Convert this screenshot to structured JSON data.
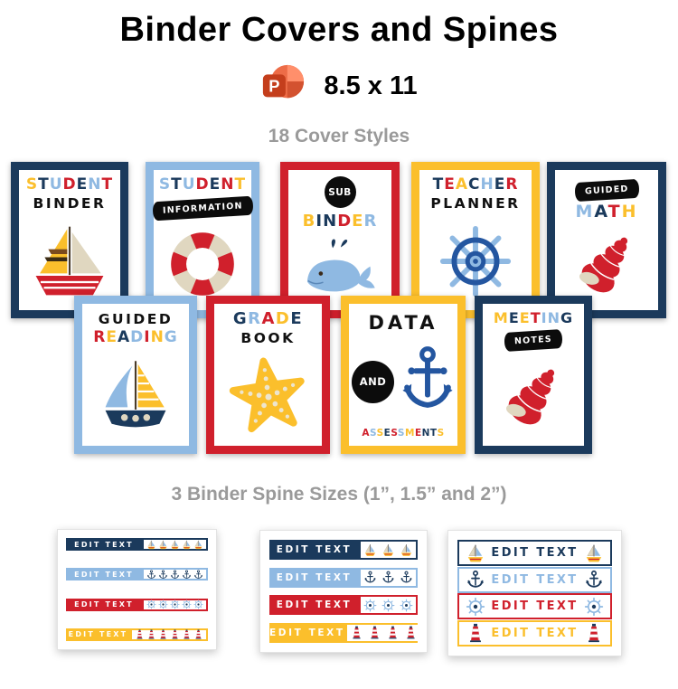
{
  "header": {
    "title": "Binder Covers and Spines",
    "pp_letter": "P",
    "size_label": "8.5 x 11",
    "covers_label": "18 Cover Styles",
    "spines_label": "3 Binder Spine Sizes (1”, 1.5” and 2”)"
  },
  "colors": {
    "navy": "#1B3A5C",
    "lightblue": "#8FB9E2",
    "red": "#D0202C",
    "yellow": "#FBBF2C",
    "black": "#0D0D0D",
    "cream": "#E0D7C0",
    "blue": "#2456A0",
    "gray_label": "#9A9A9A",
    "ppt_orange": "#ED6C47",
    "ppt_orange_light": "#FF8F6B",
    "ppt_orange_dark": "#D35230",
    "ppt_badge": "#C43E1C"
  },
  "covers": [
    {
      "id": "student-binder",
      "border": "navy",
      "graphic": "sailboat-a",
      "lines": [
        {
          "type": "letters",
          "text": "STUDENT",
          "colors": [
            "yellow",
            "navy",
            "lightblue",
            "red",
            "navy",
            "lightblue",
            "red"
          ]
        },
        {
          "type": "plain",
          "text": "BINDER"
        }
      ]
    },
    {
      "id": "student-information",
      "border": "lightblue",
      "graphic": "lifering",
      "lines": [
        {
          "type": "letters",
          "text": "STUDENT",
          "colors": [
            "lightblue",
            "navy",
            "lightblue",
            "red",
            "navy",
            "red",
            "yellow"
          ]
        },
        {
          "type": "banner",
          "text": "INFORMATION"
        }
      ]
    },
    {
      "id": "sub-binder",
      "border": "red",
      "graphic": "whale",
      "lines": [
        {
          "type": "badge",
          "text": "SUB"
        },
        {
          "type": "letters",
          "text": "BINDER",
          "colors": [
            "yellow",
            "navy",
            "navy",
            "red",
            "yellow",
            "lightblue"
          ]
        }
      ]
    },
    {
      "id": "teacher-planner",
      "border": "yellow",
      "graphic": "wheel-large",
      "lines": [
        {
          "type": "letters",
          "text": "TEACHER",
          "colors": [
            "navy",
            "red",
            "yellow",
            "navy",
            "lightblue",
            "navy",
            "red"
          ]
        },
        {
          "type": "plain",
          "text": "PLANNER"
        }
      ]
    },
    {
      "id": "guided-math",
      "border": "navy",
      "graphic": "shell",
      "lines": [
        {
          "type": "banner",
          "text": "GUIDED"
        },
        {
          "type": "letters",
          "text": "MATH",
          "colors": [
            "lightblue",
            "navy",
            "red",
            "yellow"
          ]
        }
      ]
    },
    {
      "id": "guided-reading",
      "border": "lightblue",
      "graphic": "sailboat-b",
      "lines": [
        {
          "type": "plain",
          "text": "GUIDED"
        },
        {
          "type": "letters",
          "text": "READING",
          "colors": [
            "red",
            "yellow",
            "navy",
            "lightblue",
            "red",
            "yellow",
            "lightblue"
          ]
        }
      ]
    },
    {
      "id": "grade-book",
      "border": "red",
      "graphic": "starfish",
      "lines": [
        {
          "type": "letters",
          "text": "GRADE",
          "colors": [
            "navy",
            "lightblue",
            "red",
            "yellow",
            "navy"
          ]
        },
        {
          "type": "plain",
          "text": "BOOK"
        }
      ]
    },
    {
      "id": "data-assessments",
      "border": "yellow",
      "graphic": "anchor-and",
      "badge": "AND",
      "lines": [
        {
          "type": "plain",
          "text": "DATA"
        }
      ],
      "bottom": {
        "type": "letters",
        "text": "ASSESSMENTS",
        "colors": [
          "red",
          "lightblue",
          "yellow",
          "navy",
          "red",
          "lightblue",
          "yellow",
          "red",
          "navy",
          "navy",
          "yellow"
        ]
      }
    },
    {
      "id": "meeting-notes",
      "border": "navy",
      "graphic": "shell",
      "lines": [
        {
          "type": "letters",
          "text": "MEETING",
          "colors": [
            "yellow",
            "navy",
            "yellow",
            "red",
            "lightblue",
            "lightblue",
            "navy"
          ]
        },
        {
          "type": "banner",
          "text": "NOTES"
        }
      ]
    }
  ],
  "spine_cards": [
    {
      "size": "1 inch",
      "spines": [
        {
          "style": "filled",
          "color": "navy",
          "label": "EDIT TEXT",
          "icon": "sailboat",
          "count": 5
        },
        {
          "style": "filled",
          "color": "lightblue",
          "label": "EDIT TEXT",
          "icon": "anchor",
          "count": 5
        },
        {
          "style": "filled",
          "color": "red",
          "label": "EDIT TEXT",
          "icon": "wheel",
          "count": 5
        },
        {
          "style": "filled",
          "color": "yellow",
          "label": "EDIT TEXT",
          "icon": "lighthouse",
          "count": 6
        }
      ]
    },
    {
      "size": "1.5 inch",
      "spines": [
        {
          "style": "filled",
          "color": "navy",
          "label": "EDIT TEXT",
          "icon": "sailboat",
          "count": 3
        },
        {
          "style": "filled",
          "color": "lightblue",
          "label": "EDIT TEXT",
          "icon": "anchor",
          "count": 3
        },
        {
          "style": "filled",
          "color": "red",
          "label": "EDIT TEXT",
          "icon": "wheel",
          "count": 3
        },
        {
          "style": "filled",
          "color": "yellow",
          "label": "EDIT TEXT",
          "icon": "lighthouse",
          "count": 4
        }
      ]
    },
    {
      "size": "2 inch",
      "spines": [
        {
          "style": "outline",
          "color": "navy",
          "label": "EDIT TEXT",
          "icon": "sailboat",
          "count": 2
        },
        {
          "style": "outline",
          "color": "lightblue",
          "label": "EDIT TEXT",
          "icon": "anchor",
          "count": 2
        },
        {
          "style": "outline",
          "color": "red",
          "label": "EDIT TEXT",
          "icon": "wheel",
          "count": 2
        },
        {
          "style": "outline",
          "color": "yellow",
          "label": "EDIT TEXT",
          "icon": "lighthouse",
          "count": 2
        }
      ]
    }
  ]
}
